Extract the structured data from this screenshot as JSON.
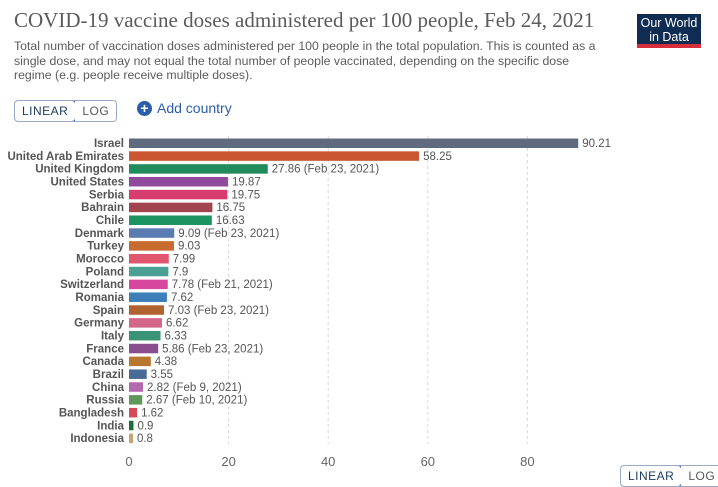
{
  "title": "COVID-19 vaccine doses administered per 100 people, Feb 24, 2021",
  "subtitle": "Total number of vaccination doses administered per 100 people in the total population. This is counted as a single dose, and may not equal the total number of people vaccinated, depending on the specific dose regime (e.g. people receive multiple doses).",
  "logo": {
    "line1": "Our World",
    "line2": "in Data"
  },
  "scale_toggle": {
    "linear": "LINEAR",
    "log": "LOG",
    "selected": "LINEAR"
  },
  "add_country": "Add country",
  "chart_data": {
    "type": "bar",
    "orientation": "horizontal",
    "xlim": [
      0,
      92
    ],
    "xticks": [
      0,
      20,
      40,
      60,
      80
    ],
    "grid": "vertical dashed",
    "categories": [
      "Israel",
      "United Arab Emirates",
      "United Kingdom",
      "United States",
      "Serbia",
      "Bahrain",
      "Chile",
      "Denmark",
      "Turkey",
      "Morocco",
      "Poland",
      "Switzerland",
      "Romania",
      "Spain",
      "Germany",
      "Italy",
      "France",
      "Canada",
      "Brazil",
      "China",
      "Russia",
      "Bangladesh",
      "India",
      "Indonesia"
    ],
    "values": [
      90.21,
      58.25,
      27.86,
      19.87,
      19.75,
      16.75,
      16.63,
      9.09,
      9.03,
      7.99,
      7.9,
      7.78,
      7.62,
      7.03,
      6.62,
      6.33,
      5.86,
      4.38,
      3.55,
      2.82,
      2.67,
      1.62,
      0.9,
      0.8
    ],
    "value_labels": [
      "90.21",
      "58.25",
      "27.86 (Feb 23, 2021)",
      "19.87",
      "19.75",
      "16.75",
      "16.63",
      "9.09 (Feb 23, 2021)",
      "9.03",
      "7.99",
      "7.9",
      "7.78 (Feb 21, 2021)",
      "7.62",
      "7.03 (Feb 23, 2021)",
      "6.62",
      "6.33",
      "5.86 (Feb 23, 2021)",
      "4.38",
      "3.55",
      "2.82 (Feb 9, 2021)",
      "2.67 (Feb 10, 2021)",
      "1.62",
      "0.9",
      "0.8"
    ],
    "colors": [
      "#5f6a7f",
      "#c95631",
      "#218b5e",
      "#8f4a9e",
      "#d73c6e",
      "#a2444f",
      "#1d9361",
      "#5b7cb2",
      "#c96b2e",
      "#e0566f",
      "#4aa092",
      "#d6479e",
      "#3d80b9",
      "#b0632f",
      "#d46688",
      "#3a9376",
      "#8a4d8d",
      "#b8762f",
      "#4a6b96",
      "#b468b1",
      "#60975a",
      "#d84759",
      "#1e6e3a",
      "#c9a173"
    ]
  }
}
